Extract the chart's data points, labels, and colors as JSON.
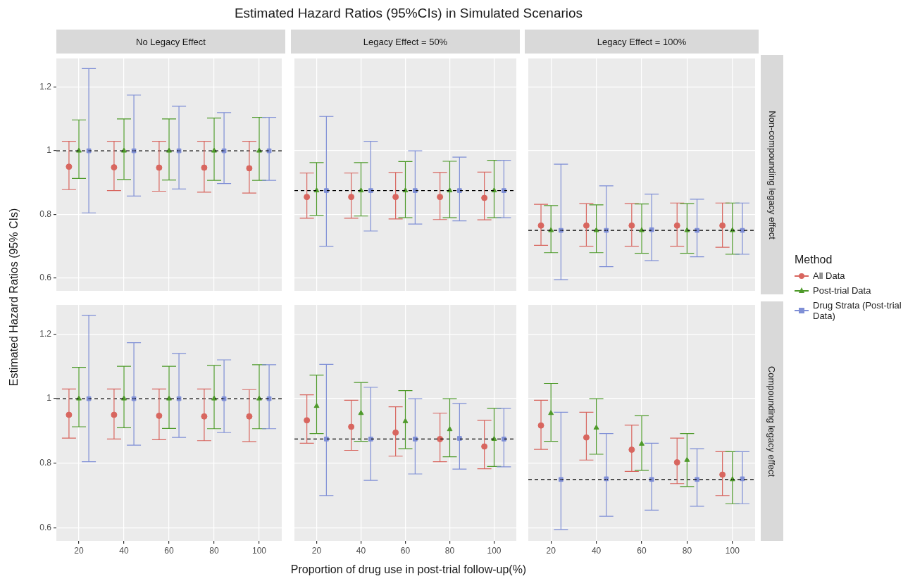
{
  "chart_data": [
    {
      "type": "scatter",
      "title": "Estimated Hazard Ratios (95%CIs) in Simulated Scenarios",
      "subtitle": "No Legacy Effect",
      "ylabel": "Estimated Hazard Ratios (95% CIs)",
      "legend_title": "Method",
      "categories": [
        "20",
        "40",
        "60",
        "80",
        "100"
      ],
      "ylim": [
        0.56,
        1.29
      ],
      "yticks": [
        0.6,
        0.8,
        1,
        1.2
      ],
      "grid": true,
      "legend": "right",
      "tick_labels": "y",
      "ref_lines": [
        {
          "axis": "y",
          "value": 1,
          "line_style": "dashed",
          "color": "#000000"
        }
      ],
      "series": [
        {
          "name": "All Data",
          "color": "#d8665f",
          "marker": "circle",
          "values": [
            0.95,
            0.948,
            0.947,
            0.947,
            0.945
          ],
          "errors": [
            [
              0.878,
              1.03
            ],
            [
              0.875,
              1.03
            ],
            [
              0.873,
              1.03
            ],
            [
              0.87,
              1.03
            ],
            [
              0.867,
              1.03
            ]
          ]
        },
        {
          "name": "Post-trial Data",
          "color": "#4e9a2a",
          "marker": "triangle",
          "values": [
            1,
            1,
            1,
            1,
            1
          ],
          "errors": [
            [
              0.913,
              1.097
            ],
            [
              0.91,
              1.1
            ],
            [
              0.908,
              1.1
            ],
            [
              0.907,
              1.103
            ],
            [
              0.907,
              1.105
            ]
          ]
        },
        {
          "name": "Drug Strata (Post-trial Data)",
          "color": "#7f8fd6",
          "marker": "square",
          "values": [
            1,
            1,
            1,
            1,
            1
          ],
          "errors": [
            [
              0.805,
              1.258
            ],
            [
              0.858,
              1.175
            ],
            [
              0.88,
              1.14
            ],
            [
              0.897,
              1.12
            ],
            [
              0.907,
              1.105
            ]
          ]
        }
      ]
    },
    {
      "type": "scatter",
      "subtitle": "Legacy Effect = 50%",
      "categories": [
        "20",
        "40",
        "60",
        "80",
        "100"
      ],
      "ylim": [
        0.56,
        1.29
      ],
      "yticks": [
        0.6,
        0.8,
        1,
        1.2
      ],
      "grid": true,
      "tick_labels": false,
      "ref_lines": [
        {
          "axis": "y",
          "value": 0.875,
          "line_style": "dashed",
          "color": "#000000"
        }
      ],
      "series": [
        {
          "color": "#d8665f",
          "marker": "circle",
          "values": [
            0.855,
            0.855,
            0.855,
            0.855,
            0.852
          ],
          "errors": [
            [
              0.788,
              0.93
            ],
            [
              0.788,
              0.93
            ],
            [
              0.786,
              0.932
            ],
            [
              0.784,
              0.932
            ],
            [
              0.783,
              0.933
            ]
          ]
        },
        {
          "color": "#4e9a2a",
          "marker": "triangle",
          "values": [
            0.875,
            0.875,
            0.875,
            0.875,
            0.875
          ],
          "errors": [
            [
              0.797,
              0.963
            ],
            [
              0.795,
              0.963
            ],
            [
              0.79,
              0.966
            ],
            [
              0.79,
              0.967
            ],
            [
              0.79,
              0.97
            ]
          ]
        },
        {
          "color": "#7f8fd6",
          "marker": "square",
          "values": [
            0.875,
            0.875,
            0.875,
            0.875,
            0.875
          ],
          "errors": [
            [
              0.7,
              1.108
            ],
            [
              0.748,
              1.03
            ],
            [
              0.77,
              1.0
            ],
            [
              0.78,
              0.98
            ],
            [
              0.79,
              0.97
            ]
          ]
        }
      ]
    },
    {
      "type": "scatter",
      "subtitle": "Legacy Effect = 100%",
      "y2label": "Non-compounding legacy effect",
      "categories": [
        "20",
        "40",
        "60",
        "80",
        "100"
      ],
      "ylim": [
        0.56,
        1.29
      ],
      "yticks": [
        0.6,
        0.8,
        1,
        1.2
      ],
      "grid": true,
      "tick_labels": false,
      "ref_lines": [
        {
          "axis": "y",
          "value": 0.75,
          "line_style": "dashed",
          "color": "#000000"
        }
      ],
      "series": [
        {
          "color": "#d8665f",
          "marker": "circle",
          "values": [
            0.765,
            0.765,
            0.765,
            0.765,
            0.765
          ],
          "errors": [
            [
              0.703,
              0.832
            ],
            [
              0.7,
              0.834
            ],
            [
              0.7,
              0.834
            ],
            [
              0.7,
              0.836
            ],
            [
              0.697,
              0.836
            ]
          ]
        },
        {
          "color": "#4e9a2a",
          "marker": "triangle",
          "values": [
            0.75,
            0.75,
            0.75,
            0.75,
            0.75
          ],
          "errors": [
            [
              0.68,
              0.828
            ],
            [
              0.68,
              0.83
            ],
            [
              0.678,
              0.833
            ],
            [
              0.678,
              0.834
            ],
            [
              0.675,
              0.836
            ]
          ]
        },
        {
          "color": "#7f8fd6",
          "marker": "square",
          "values": [
            0.75,
            0.75,
            0.752,
            0.75,
            0.75
          ],
          "errors": [
            [
              0.595,
              0.958
            ],
            [
              0.636,
              0.89
            ],
            [
              0.655,
              0.864
            ],
            [
              0.667,
              0.848
            ],
            [
              0.675,
              0.836
            ]
          ]
        }
      ]
    },
    {
      "type": "scatter",
      "categories": [
        "20",
        "40",
        "60",
        "80",
        "100"
      ],
      "ylim": [
        0.56,
        1.29
      ],
      "yticks": [
        0.6,
        0.8,
        1,
        1.2
      ],
      "grid": true,
      "ref_lines": [
        {
          "axis": "y",
          "value": 1,
          "line_style": "dashed",
          "color": "#000000"
        }
      ],
      "series": [
        {
          "color": "#d8665f",
          "marker": "circle",
          "values": [
            0.95,
            0.95,
            0.947,
            0.945,
            0.945
          ],
          "errors": [
            [
              0.878,
              1.03
            ],
            [
              0.875,
              1.03
            ],
            [
              0.873,
              1.03
            ],
            [
              0.87,
              1.03
            ],
            [
              0.867,
              1.028
            ]
          ]
        },
        {
          "color": "#4e9a2a",
          "marker": "triangle",
          "values": [
            1,
            1,
            1,
            1,
            1
          ],
          "errors": [
            [
              0.913,
              1.097
            ],
            [
              0.91,
              1.1
            ],
            [
              0.908,
              1.1
            ],
            [
              0.907,
              1.103
            ],
            [
              0.907,
              1.105
            ]
          ]
        },
        {
          "color": "#7f8fd6",
          "marker": "square",
          "values": [
            1,
            1,
            1,
            1,
            1
          ],
          "errors": [
            [
              0.805,
              1.258
            ],
            [
              0.856,
              1.173
            ],
            [
              0.88,
              1.14
            ],
            [
              0.895,
              1.12
            ],
            [
              0.907,
              1.105
            ]
          ]
        }
      ]
    },
    {
      "type": "scatter",
      "xlabel": "Proportion of drug use in post-trial follow-up(%)",
      "categories": [
        "20",
        "40",
        "60",
        "80",
        "100"
      ],
      "ylim": [
        0.56,
        1.29
      ],
      "yticks": [
        0.6,
        0.8,
        1,
        1.2
      ],
      "grid": true,
      "tick_labels": "x",
      "ref_lines": [
        {
          "axis": "y",
          "value": 0.875,
          "line_style": "dashed",
          "color": "#000000"
        }
      ],
      "series": [
        {
          "color": "#d8665f",
          "marker": "circle",
          "values": [
            0.933,
            0.913,
            0.895,
            0.875,
            0.852
          ],
          "errors": [
            [
              0.862,
              1.012
            ],
            [
              0.84,
              0.995
            ],
            [
              0.822,
              0.975
            ],
            [
              0.805,
              0.955
            ],
            [
              0.783,
              0.933
            ]
          ]
        },
        {
          "color": "#4e9a2a",
          "marker": "triangle",
          "values": [
            0.977,
            0.955,
            0.93,
            0.905,
            0.875
          ],
          "errors": [
            [
              0.892,
              1.073
            ],
            [
              0.868,
              1.05
            ],
            [
              0.845,
              1.025
            ],
            [
              0.82,
              1.0
            ],
            [
              0.79,
              0.97
            ]
          ]
        },
        {
          "color": "#7f8fd6",
          "marker": "square",
          "values": [
            0.875,
            0.875,
            0.875,
            0.877,
            0.875
          ],
          "errors": [
            [
              0.7,
              1.106
            ],
            [
              0.747,
              1.035
            ],
            [
              0.767,
              1.0
            ],
            [
              0.782,
              0.985
            ],
            [
              0.789,
              0.97
            ]
          ]
        }
      ]
    },
    {
      "type": "scatter",
      "y2label": "Compounding legacy effect",
      "categories": [
        "20",
        "40",
        "60",
        "80",
        "100"
      ],
      "ylim": [
        0.56,
        1.29
      ],
      "yticks": [
        0.6,
        0.8,
        1,
        1.2
      ],
      "grid": true,
      "tick_labels": "x",
      "ref_lines": [
        {
          "axis": "y",
          "value": 0.75,
          "line_style": "dashed",
          "color": "#000000"
        }
      ],
      "series": [
        {
          "color": "#d8665f",
          "marker": "circle",
          "values": [
            0.917,
            0.88,
            0.842,
            0.803,
            0.765
          ],
          "errors": [
            [
              0.843,
              0.995
            ],
            [
              0.81,
              0.958
            ],
            [
              0.775,
              0.918
            ],
            [
              0.737,
              0.878
            ],
            [
              0.7,
              0.836
            ]
          ]
        },
        {
          "color": "#4e9a2a",
          "marker": "triangle",
          "values": [
            0.955,
            0.91,
            0.86,
            0.81,
            0.75
          ],
          "errors": [
            [
              0.868,
              1.047
            ],
            [
              0.828,
              1.0
            ],
            [
              0.778,
              0.947
            ],
            [
              0.728,
              0.892
            ],
            [
              0.675,
              0.836
            ]
          ]
        },
        {
          "color": "#7f8fd6",
          "marker": "square",
          "values": [
            0.75,
            0.752,
            0.75,
            0.75,
            0.752
          ],
          "errors": [
            [
              0.595,
              0.958
            ],
            [
              0.636,
              0.892
            ],
            [
              0.655,
              0.862
            ],
            [
              0.667,
              0.845
            ],
            [
              0.675,
              0.836
            ]
          ]
        }
      ]
    }
  ]
}
